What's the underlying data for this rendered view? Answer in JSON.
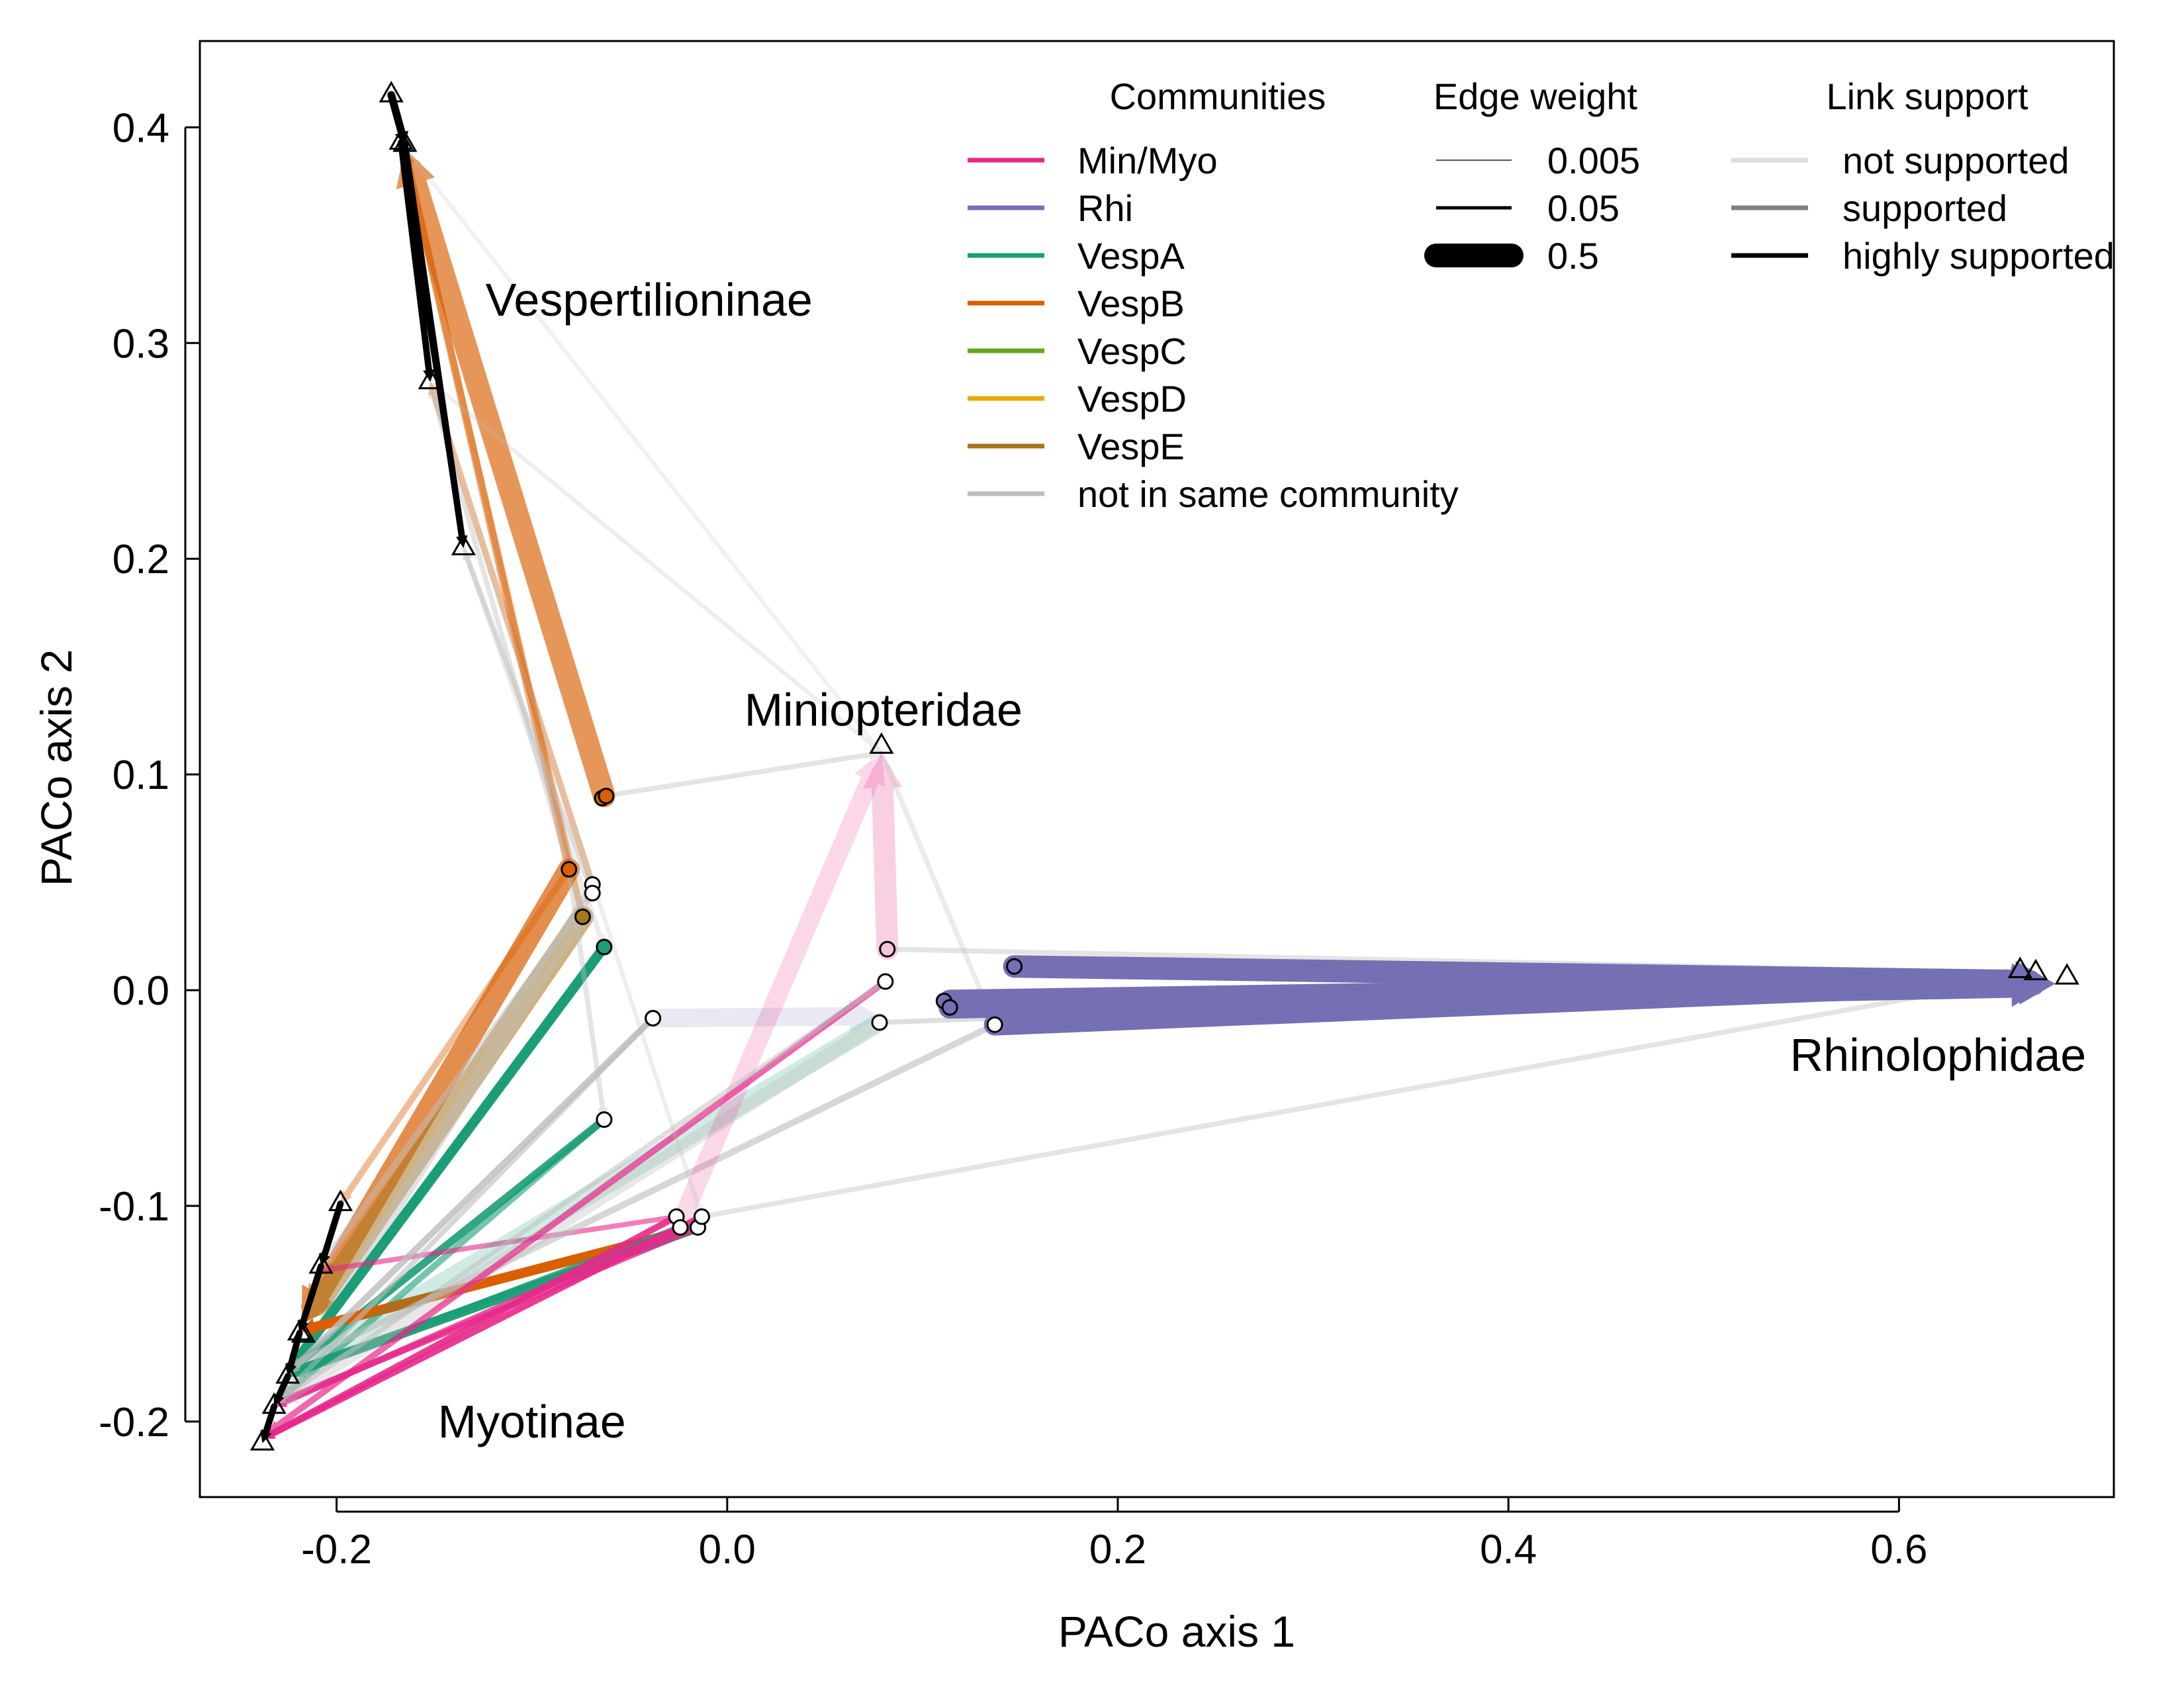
{
  "chart_data": {
    "type": "scatter",
    "xlabel": "PACo axis 1",
    "ylabel": "PACo axis 2",
    "xlim": [
      -0.27,
      0.71
    ],
    "ylim": [
      -0.235,
      0.44
    ],
    "x_ticks": [
      -0.2,
      0.0,
      0.2,
      0.4,
      0.6
    ],
    "x_tick_labels": [
      "-0.2",
      "0.0",
      "0.2",
      "0.4",
      "0.6"
    ],
    "y_ticks": [
      -0.2,
      -0.1,
      0.0,
      0.1,
      0.2,
      0.3,
      0.4
    ],
    "y_tick_labels": [
      "-0.2",
      "-0.1",
      "0.0",
      "0.1",
      "0.2",
      "0.3",
      "0.4"
    ],
    "grid": false,
    "legend_placement": "top-right",
    "group_labels": [
      {
        "text": "Vespertilioninae",
        "x": -0.04,
        "y": 0.32
      },
      {
        "text": "Miniopteridae",
        "x": 0.08,
        "y": 0.13
      },
      {
        "text": "Rhinolophidae",
        "x": 0.62,
        "y": -0.03
      },
      {
        "text": "Myotinae",
        "x": -0.1,
        "y": -0.2
      }
    ],
    "legends": {
      "communities": {
        "title": "Communities",
        "items": [
          {
            "label": "Min/Myo",
            "color": "#e7298a"
          },
          {
            "label": "Rhi",
            "color": "#7570b3"
          },
          {
            "label": "VespA",
            "color": "#1b9e77"
          },
          {
            "label": "VespB",
            "color": "#d95f02"
          },
          {
            "label": "VespC",
            "color": "#66a61e"
          },
          {
            "label": "VespD",
            "color": "#e6ab02"
          },
          {
            "label": "VespE",
            "color": "#a6761d"
          },
          {
            "label": "not in same community",
            "color": "#bebebe"
          }
        ]
      },
      "edge_weight": {
        "title": "Edge weight",
        "items": [
          {
            "label": "0.005",
            "weight": 0.005
          },
          {
            "label": "0.05",
            "weight": 0.05
          },
          {
            "label": "0.5",
            "weight": 0.5
          }
        ]
      },
      "link_support": {
        "title": "Link support",
        "items": [
          {
            "label": "not supported",
            "color": "#dddddd"
          },
          {
            "label": "supported",
            "color": "#808080"
          },
          {
            "label": "highly supported",
            "color": "#000000"
          }
        ]
      }
    },
    "series": [
      {
        "marker": "triangle",
        "points": [
          [
            -0.172,
            0.415
          ],
          [
            -0.167,
            0.393
          ],
          [
            -0.165,
            0.392
          ],
          [
            -0.152,
            0.282
          ],
          [
            -0.135,
            0.205
          ],
          [
            0.079,
            0.113
          ],
          [
            0.662,
            0.009
          ],
          [
            0.67,
            0.008
          ],
          [
            0.686,
            0.006
          ],
          [
            -0.198,
            -0.099
          ],
          [
            -0.208,
            -0.128
          ],
          [
            -0.219,
            -0.159
          ],
          [
            -0.217,
            -0.16
          ],
          [
            -0.225,
            -0.179
          ],
          [
            -0.232,
            -0.193
          ],
          [
            -0.238,
            -0.21
          ]
        ]
      },
      {
        "marker": "circle",
        "points": [
          {
            "x": -0.064,
            "y": 0.089,
            "fill": "#d95f02"
          },
          {
            "x": -0.062,
            "y": 0.09,
            "fill": "#d95f02"
          },
          {
            "x": -0.081,
            "y": 0.056,
            "fill": "#d95f02"
          },
          {
            "x": -0.069,
            "y": 0.049,
            "fill": "#ffffff"
          },
          {
            "x": -0.069,
            "y": 0.045,
            "fill": "#ffffff"
          },
          {
            "x": -0.074,
            "y": 0.034,
            "fill": "#a6761d"
          },
          {
            "x": -0.063,
            "y": 0.02,
            "fill": "#1b9e77"
          },
          {
            "x": -0.063,
            "y": -0.06,
            "fill": "#ffffff"
          },
          {
            "x": -0.038,
            "y": -0.013,
            "fill": "#ffffff"
          },
          {
            "x": 0.082,
            "y": 0.019,
            "fill": "#f4c6dd"
          },
          {
            "x": 0.081,
            "y": 0.004,
            "fill": "#ffffff"
          },
          {
            "x": 0.078,
            "y": -0.015,
            "fill": "#ffffff"
          },
          {
            "x": 0.147,
            "y": 0.011,
            "fill": "#7570b3"
          },
          {
            "x": 0.111,
            "y": -0.005,
            "fill": "#7570b3"
          },
          {
            "x": 0.114,
            "y": -0.008,
            "fill": "#7570b3"
          },
          {
            "x": 0.137,
            "y": -0.016,
            "fill": "#ffffff"
          },
          {
            "x": -0.026,
            "y": -0.105,
            "fill": "#ffffff"
          },
          {
            "x": -0.024,
            "y": -0.11,
            "fill": "#ffffff"
          },
          {
            "x": -0.015,
            "y": -0.11,
            "fill": "#ffffff"
          },
          {
            "x": -0.013,
            "y": -0.105,
            "fill": "#ffffff"
          }
        ]
      }
    ],
    "edges": [
      {
        "from": [
          -0.063,
          0.09
        ],
        "to": [
          -0.165,
          0.39
        ],
        "color": "#d95f02",
        "weight": 0.5,
        "alpha": 0.65
      },
      {
        "from": [
          -0.081,
          0.056
        ],
        "to": [
          -0.165,
          0.389
        ],
        "color": "#d95f02",
        "weight": 0.03,
        "alpha": 0.5
      },
      {
        "from": [
          -0.074,
          0.034
        ],
        "to": [
          -0.165,
          0.388
        ],
        "color": "#d95f02",
        "weight": 0.02,
        "alpha": 0.45
      },
      {
        "from": [
          -0.069,
          0.049
        ],
        "to": [
          -0.152,
          0.282
        ],
        "color": "#d95f02",
        "weight": 0.02,
        "alpha": 0.4
      },
      {
        "from": [
          -0.069,
          0.045
        ],
        "to": [
          -0.135,
          0.205
        ],
        "color": "#bebebe",
        "weight": 0.01,
        "alpha": 0.5
      },
      {
        "from": [
          -0.074,
          0.034
        ],
        "to": [
          -0.152,
          0.28
        ],
        "color": "#bebebe",
        "weight": 0.01,
        "alpha": 0.4
      },
      {
        "from": [
          -0.081,
          0.056
        ],
        "to": [
          -0.218,
          -0.155
        ],
        "color": "#d95f02",
        "weight": 0.3,
        "alpha": 0.7
      },
      {
        "from": [
          -0.074,
          0.034
        ],
        "to": [
          -0.216,
          -0.154
        ],
        "color": "#a6761d",
        "weight": 0.3,
        "alpha": 0.55
      },
      {
        "from": [
          -0.081,
          0.056
        ],
        "to": [
          -0.198,
          -0.099
        ],
        "color": "#d95f02",
        "weight": 0.02,
        "alpha": 0.4
      },
      {
        "from": [
          -0.069,
          0.045
        ],
        "to": [
          -0.208,
          -0.128
        ],
        "color": "#bebebe",
        "weight": 0.02,
        "alpha": 0.5
      },
      {
        "from": [
          -0.069,
          0.049
        ],
        "to": [
          -0.225,
          -0.179
        ],
        "color": "#bebebe",
        "weight": 0.02,
        "alpha": 0.45
      },
      {
        "from": [
          -0.074,
          0.034
        ],
        "to": [
          -0.232,
          -0.193
        ],
        "color": "#bebebe",
        "weight": 0.02,
        "alpha": 0.45
      },
      {
        "from": [
          -0.063,
          0.02
        ],
        "to": [
          -0.225,
          -0.177
        ],
        "color": "#1b9e77",
        "weight": 0.05,
        "alpha": 1.0
      },
      {
        "from": [
          -0.063,
          -0.06
        ],
        "to": [
          -0.225,
          -0.177
        ],
        "color": "#1b9e77",
        "weight": 0.03,
        "alpha": 0.9
      },
      {
        "from": [
          -0.063,
          -0.06
        ],
        "to": [
          -0.232,
          -0.192
        ],
        "color": "#1b9e77",
        "weight": 0.02,
        "alpha": 0.6
      },
      {
        "from": [
          -0.015,
          -0.11
        ],
        "to": [
          -0.219,
          -0.158
        ],
        "color": "#d95f02",
        "weight": 0.05,
        "alpha": 1.0
      },
      {
        "from": [
          -0.015,
          -0.11
        ],
        "to": [
          -0.225,
          -0.178
        ],
        "color": "#1b9e77",
        "weight": 0.05,
        "alpha": 0.95
      },
      {
        "from": [
          -0.024,
          -0.11
        ],
        "to": [
          -0.225,
          -0.179
        ],
        "color": "#1b9e77",
        "weight": 0.02,
        "alpha": 0.85
      },
      {
        "from": [
          -0.026,
          -0.105
        ],
        "to": [
          -0.238,
          -0.208
        ],
        "color": "#e7298a",
        "weight": 0.02,
        "alpha": 0.9
      },
      {
        "from": [
          -0.013,
          -0.105
        ],
        "to": [
          -0.238,
          -0.208
        ],
        "color": "#e7298a",
        "weight": 0.02,
        "alpha": 0.9
      },
      {
        "from": [
          -0.024,
          -0.11
        ],
        "to": [
          -0.232,
          -0.193
        ],
        "color": "#e7298a",
        "weight": 0.02,
        "alpha": 0.8
      },
      {
        "from": [
          -0.015,
          -0.11
        ],
        "to": [
          -0.232,
          -0.192
        ],
        "color": "#e7298a",
        "weight": 0.02,
        "alpha": 0.8
      },
      {
        "from": [
          -0.026,
          -0.105
        ],
        "to": [
          -0.208,
          -0.13
        ],
        "color": "#e7298a",
        "weight": 0.01,
        "alpha": 0.6
      },
      {
        "from": [
          -0.038,
          -0.013
        ],
        "to": [
          -0.225,
          -0.178
        ],
        "color": "#bebebe",
        "weight": 0.02,
        "alpha": 0.8
      },
      {
        "from": [
          -0.038,
          -0.013
        ],
        "to": [
          -0.232,
          -0.192
        ],
        "color": "#bebebe",
        "weight": 0.01,
        "alpha": 0.6
      },
      {
        "from": [
          -0.038,
          -0.013
        ],
        "to": [
          0.078,
          -0.012
        ],
        "color": "#7570b3",
        "weight": 0.2,
        "alpha": 0.15
      },
      {
        "from": [
          0.078,
          -0.015
        ],
        "to": [
          -0.225,
          -0.178
        ],
        "color": "#1b9e77",
        "weight": 0.2,
        "alpha": 0.2
      },
      {
        "from": [
          0.078,
          -0.015
        ],
        "to": [
          -0.232,
          -0.192
        ],
        "color": "#bebebe",
        "weight": 0.1,
        "alpha": 0.35
      },
      {
        "from": [
          0.137,
          -0.016
        ],
        "to": [
          -0.225,
          -0.175
        ],
        "color": "#bebebe",
        "weight": 0.02,
        "alpha": 0.6
      },
      {
        "from": [
          0.082,
          0.019
        ],
        "to": [
          0.079,
          0.11
        ],
        "color": "#e7298a",
        "weight": 0.3,
        "alpha": 0.22
      },
      {
        "from": [
          -0.024,
          -0.108
        ],
        "to": [
          0.079,
          0.11
        ],
        "color": "#e7298a",
        "weight": 0.2,
        "alpha": 0.18
      },
      {
        "from": [
          0.081,
          0.004
        ],
        "to": [
          -0.235,
          -0.205
        ],
        "color": "#e7298a",
        "weight": 0.02,
        "alpha": 0.7
      },
      {
        "from": [
          0.081,
          0.004
        ],
        "to": [
          -0.232,
          -0.192
        ],
        "color": "#bebebe",
        "weight": 0.01,
        "alpha": 0.5
      },
      {
        "from": [
          -0.063,
          0.09
        ],
        "to": [
          0.079,
          0.11
        ],
        "color": "#bebebe",
        "weight": 0.01,
        "alpha": 0.4
      },
      {
        "from": [
          0.079,
          0.11
        ],
        "to": [
          0.137,
          -0.016
        ],
        "color": "#bebebe",
        "weight": 0.01,
        "alpha": 0.3
      },
      {
        "from": [
          -0.081,
          0.056
        ],
        "to": [
          -0.063,
          -0.06
        ],
        "color": "#bebebe",
        "weight": 0.01,
        "alpha": 0.4
      },
      {
        "from": [
          -0.135,
          0.205
        ],
        "to": [
          -0.063,
          0.02
        ],
        "color": "#bebebe",
        "weight": 0.01,
        "alpha": 0.3
      },
      {
        "from": [
          -0.152,
          0.282
        ],
        "to": [
          0.079,
          0.11
        ],
        "color": "#bebebe",
        "weight": 0.005,
        "alpha": 0.25
      },
      {
        "from": [
          -0.167,
          0.393
        ],
        "to": [
          0.079,
          0.11
        ],
        "color": "#bebebe",
        "weight": 0.005,
        "alpha": 0.2
      },
      {
        "from": [
          -0.152,
          0.28
        ],
        "to": [
          -0.013,
          -0.105
        ],
        "color": "#bebebe",
        "weight": 0.005,
        "alpha": 0.25
      },
      {
        "from": [
          0.137,
          -0.016
        ],
        "to": [
          0.66,
          0.006
        ],
        "color": "#bebebe",
        "weight": 0.01,
        "alpha": 0.5
      },
      {
        "from": [
          0.078,
          -0.015
        ],
        "to": [
          0.66,
          0.005
        ],
        "color": "#bebebe",
        "weight": 0.01,
        "alpha": 0.5
      },
      {
        "from": [
          -0.013,
          -0.105
        ],
        "to": [
          0.66,
          0.005
        ],
        "color": "#bebebe",
        "weight": 0.01,
        "alpha": 0.4
      },
      {
        "from": [
          0.082,
          0.019
        ],
        "to": [
          0.66,
          0.008
        ],
        "color": "#bebebe",
        "weight": 0.01,
        "alpha": 0.4
      },
      {
        "from": [
          0.147,
          0.011
        ],
        "to": [
          0.678,
          0.004
        ],
        "color": "#7570b3",
        "weight": 0.5,
        "alpha": 1.0
      },
      {
        "from": [
          0.114,
          -0.005
        ],
        "to": [
          0.68,
          0.003
        ],
        "color": "#7570b3",
        "weight": 0.5,
        "alpha": 1.0
      },
      {
        "from": [
          0.114,
          -0.008
        ],
        "to": [
          0.676,
          0.002
        ],
        "color": "#7570b3",
        "weight": 0.5,
        "alpha": 1.0
      },
      {
        "from": [
          0.137,
          -0.016
        ],
        "to": [
          0.676,
          0.004
        ],
        "color": "#7570b3",
        "weight": 0.3,
        "alpha": 1.0
      },
      {
        "from": [
          -0.172,
          0.415
        ],
        "to": [
          -0.165,
          0.392
        ],
        "color": "#000000",
        "weight": 0.03,
        "alpha": 1.0
      },
      {
        "from": [
          -0.167,
          0.393
        ],
        "to": [
          -0.152,
          0.282
        ],
        "color": "#000000",
        "weight": 0.02,
        "alpha": 1.0
      },
      {
        "from": [
          -0.165,
          0.392
        ],
        "to": [
          -0.135,
          0.205
        ],
        "color": "#000000",
        "weight": 0.02,
        "alpha": 1.0
      },
      {
        "from": [
          -0.167,
          0.393
        ],
        "to": [
          -0.135,
          0.205
        ],
        "color": "#000000",
        "weight": 0.01,
        "alpha": 1.0
      },
      {
        "from": [
          -0.198,
          -0.099
        ],
        "to": [
          -0.208,
          -0.128
        ],
        "color": "#000000",
        "weight": 0.02,
        "alpha": 1.0
      },
      {
        "from": [
          -0.208,
          -0.128
        ],
        "to": [
          -0.219,
          -0.159
        ],
        "color": "#000000",
        "weight": 0.02,
        "alpha": 1.0
      },
      {
        "from": [
          -0.219,
          -0.159
        ],
        "to": [
          -0.225,
          -0.179
        ],
        "color": "#000000",
        "weight": 0.02,
        "alpha": 1.0
      },
      {
        "from": [
          -0.225,
          -0.179
        ],
        "to": [
          -0.232,
          -0.193
        ],
        "color": "#000000",
        "weight": 0.02,
        "alpha": 1.0
      },
      {
        "from": [
          -0.232,
          -0.193
        ],
        "to": [
          -0.238,
          -0.21
        ],
        "color": "#000000",
        "weight": 0.02,
        "alpha": 1.0
      }
    ]
  }
}
